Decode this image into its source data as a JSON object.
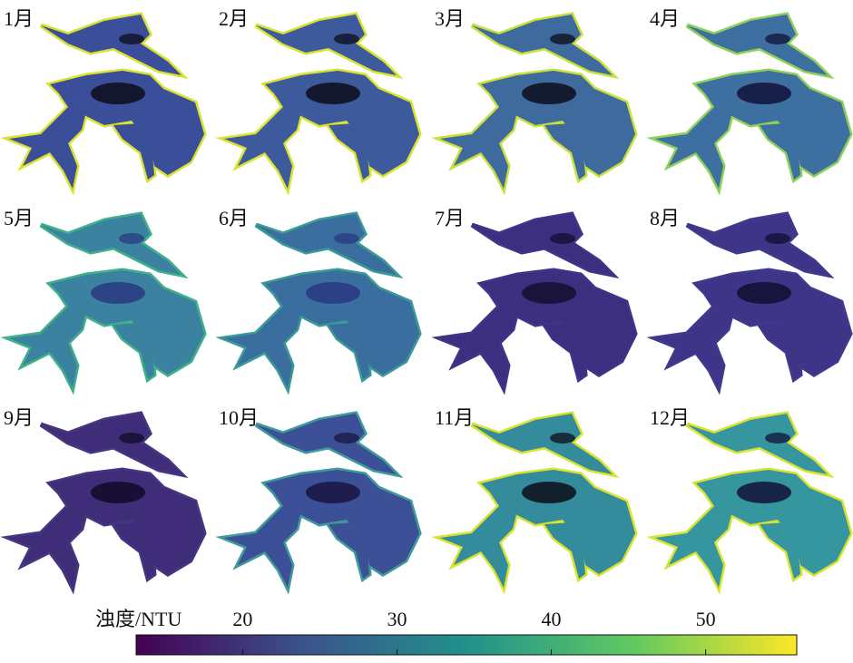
{
  "panels": [
    {
      "label": "1月",
      "color": "#3b4e9a",
      "core_color": "#0d0d1a",
      "edge_color": "#d9e22e"
    },
    {
      "label": "2月",
      "color": "#3d5a9c",
      "core_color": "#0d0d1a",
      "edge_color": "#d9e22e"
    },
    {
      "label": "3月",
      "color": "#3f6a9e",
      "core_color": "#0d0d1a",
      "edge_color": "#c8e03a"
    },
    {
      "label": "4月",
      "color": "#3d6fa0",
      "core_color": "#12123a",
      "edge_color": "#8fd05a"
    },
    {
      "label": "5月",
      "color": "#3b82a0",
      "core_color": "#2a3a80",
      "edge_color": "#40b08a"
    },
    {
      "label": "6月",
      "color": "#3a6e9e",
      "core_color": "#2a3a80",
      "edge_color": "#3a9a96"
    },
    {
      "label": "7月",
      "color": "#3d2f80",
      "core_color": "#120f30",
      "edge_color": "#3e3588"
    },
    {
      "label": "8月",
      "color": "#3e3488",
      "core_color": "#120f30",
      "edge_color": "#403a8c"
    },
    {
      "label": "9月",
      "color": "#3f2d7a",
      "core_color": "#100c28",
      "edge_color": "#45367f"
    },
    {
      "label": "10月",
      "color": "#3c5097",
      "core_color": "#1a1440",
      "edge_color": "#3f9a9a"
    },
    {
      "label": "11月",
      "color": "#338b9c",
      "core_color": "#0d0d1a",
      "edge_color": "#d9e22e"
    },
    {
      "label": "12月",
      "color": "#3696a0",
      "core_color": "#12123a",
      "edge_color": "#d9e22e"
    }
  ],
  "colorbar": {
    "label": "浊度/NTU",
    "lim": [
      13.1,
      55.9
    ],
    "ticks": [
      20,
      30,
      40,
      50
    ],
    "colormap": [
      "#440154",
      "#3b528b",
      "#21918c",
      "#5ec962",
      "#fde725"
    ]
  }
}
